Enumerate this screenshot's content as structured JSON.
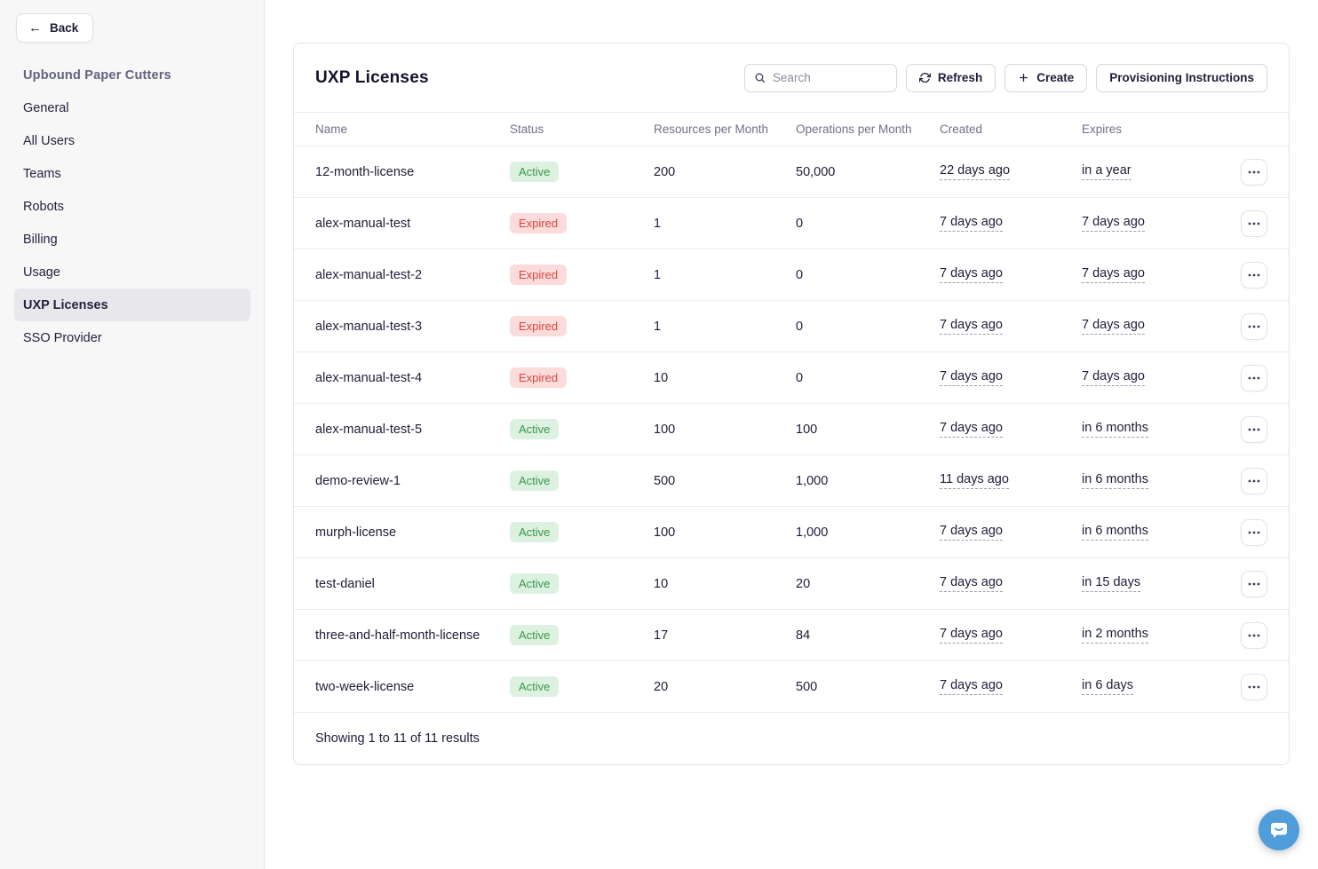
{
  "sidebar": {
    "back_label": "Back",
    "org_title": "Upbound Paper Cutters",
    "items": [
      {
        "label": "General",
        "selected": false
      },
      {
        "label": "All Users",
        "selected": false
      },
      {
        "label": "Teams",
        "selected": false
      },
      {
        "label": "Robots",
        "selected": false
      },
      {
        "label": "Billing",
        "selected": false
      },
      {
        "label": "Usage",
        "selected": false
      },
      {
        "label": "UXP Licenses",
        "selected": true
      },
      {
        "label": "SSO Provider",
        "selected": false
      }
    ]
  },
  "header": {
    "title": "UXP Licenses",
    "search_placeholder": "Search",
    "refresh_label": "Refresh",
    "create_label": "Create",
    "provisioning_label": "Provisioning Instructions"
  },
  "table": {
    "columns": [
      "Name",
      "Status",
      "Resources per Month",
      "Operations per Month",
      "Created",
      "Expires"
    ],
    "rows": [
      {
        "name": "12-month-license",
        "status": "Active",
        "resources": "200",
        "operations": "50,000",
        "created": "22 days ago",
        "expires": "in a year"
      },
      {
        "name": "alex-manual-test",
        "status": "Expired",
        "resources": "1",
        "operations": "0",
        "created": "7 days ago",
        "expires": "7 days ago"
      },
      {
        "name": "alex-manual-test-2",
        "status": "Expired",
        "resources": "1",
        "operations": "0",
        "created": "7 days ago",
        "expires": "7 days ago"
      },
      {
        "name": "alex-manual-test-3",
        "status": "Expired",
        "resources": "1",
        "operations": "0",
        "created": "7 days ago",
        "expires": "7 days ago"
      },
      {
        "name": "alex-manual-test-4",
        "status": "Expired",
        "resources": "10",
        "operations": "0",
        "created": "7 days ago",
        "expires": "7 days ago"
      },
      {
        "name": "alex-manual-test-5",
        "status": "Active",
        "resources": "100",
        "operations": "100",
        "created": "7 days ago",
        "expires": "in 6 months"
      },
      {
        "name": "demo-review-1",
        "status": "Active",
        "resources": "500",
        "operations": "1,000",
        "created": "11 days ago",
        "expires": "in 6 months"
      },
      {
        "name": "murph-license",
        "status": "Active",
        "resources": "100",
        "operations": "1,000",
        "created": "7 days ago",
        "expires": "in 6 months"
      },
      {
        "name": "test-daniel",
        "status": "Active",
        "resources": "10",
        "operations": "20",
        "created": "7 days ago",
        "expires": "in 15 days"
      },
      {
        "name": "three-and-half-month-license",
        "status": "Active",
        "resources": "17",
        "operations": "84",
        "created": "7 days ago",
        "expires": "in 2 months"
      },
      {
        "name": "two-week-license",
        "status": "Active",
        "resources": "20",
        "operations": "500",
        "created": "7 days ago",
        "expires": "in 6 days"
      }
    ],
    "footer": "Showing 1 to 11 of 11 results"
  },
  "icons": {
    "back": "back-arrow-icon",
    "search": "search-icon",
    "refresh": "refresh-icon",
    "create": "plus-icon",
    "row_actions": "ellipsis-icon",
    "chat": "chat-bubble-icon"
  },
  "colors": {
    "active_badge_bg": "#ddf1e1",
    "active_badge_text": "#38984b",
    "expired_badge_bg": "#fcdbdb",
    "expired_badge_text": "#d8453e",
    "sidebar_bg": "#f7f7f8",
    "selected_item_bg": "#e8e8ec",
    "org_title_text": "#62627e",
    "chat_fab": "#4f9ddb"
  }
}
